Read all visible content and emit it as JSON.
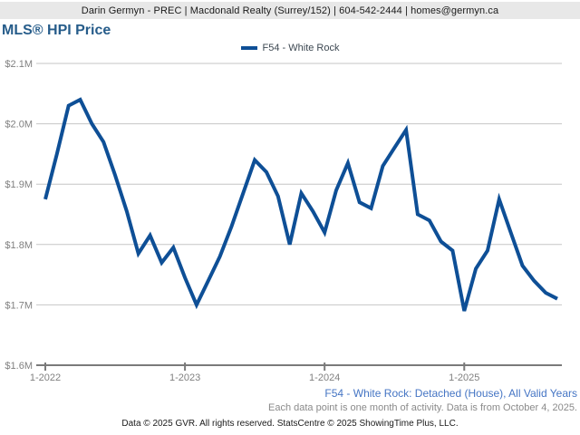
{
  "header": {
    "contact_line": "Darin Germyn - PREC | Macdonald Realty (Surrey/152) | 604-542-2444 | homes@germyn.ca"
  },
  "title": "MLS® HPI Price",
  "legend": {
    "label": "F54 - White Rock",
    "color": "#0e4f96"
  },
  "chart_data": {
    "type": "line",
    "title": "MLS® HPI Price",
    "xlabel": "",
    "ylabel": "",
    "ylim": [
      1.6,
      2.1
    ],
    "grid": true,
    "legend_position": "top-center",
    "y_ticks": [
      {
        "label": "$2.1M",
        "value": 2.1
      },
      {
        "label": "$2.0M",
        "value": 2.0
      },
      {
        "label": "$1.9M",
        "value": 1.9
      },
      {
        "label": "$1.8M",
        "value": 1.8
      },
      {
        "label": "$1.7M",
        "value": 1.7
      },
      {
        "label": "$1.6M",
        "value": 1.6
      }
    ],
    "x_tick_labels": [
      {
        "label": "1-2022",
        "month_index": 0
      },
      {
        "label": "1-2023",
        "month_index": 12
      },
      {
        "label": "1-2024",
        "month_index": 24
      },
      {
        "label": "1-2025",
        "month_index": 36
      }
    ],
    "x": [
      "1-2022",
      "2-2022",
      "3-2022",
      "4-2022",
      "5-2022",
      "6-2022",
      "7-2022",
      "8-2022",
      "9-2022",
      "10-2022",
      "11-2022",
      "12-2022",
      "1-2023",
      "2-2023",
      "3-2023",
      "4-2023",
      "5-2023",
      "6-2023",
      "7-2023",
      "8-2023",
      "9-2023",
      "10-2023",
      "11-2023",
      "12-2023",
      "1-2024",
      "2-2024",
      "3-2024",
      "4-2024",
      "5-2024",
      "6-2024",
      "7-2024",
      "8-2024",
      "9-2024",
      "10-2024",
      "11-2024",
      "12-2024",
      "1-2025",
      "2-2025",
      "3-2025",
      "4-2025",
      "5-2025",
      "6-2025",
      "7-2025",
      "8-2025",
      "9-2025"
    ],
    "series": [
      {
        "name": "F54 - White Rock",
        "color": "#0e4f96",
        "unit": "$M",
        "values": [
          1.875,
          1.95,
          2.03,
          2.04,
          2.0,
          1.97,
          1.915,
          1.855,
          1.785,
          1.815,
          1.77,
          1.795,
          1.745,
          1.7,
          1.74,
          1.78,
          1.83,
          1.885,
          1.94,
          1.92,
          1.88,
          1.8,
          1.885,
          1.855,
          1.82,
          1.89,
          1.935,
          1.87,
          1.86,
          1.93,
          1.96,
          1.99,
          1.85,
          1.84,
          1.805,
          1.79,
          1.69,
          1.76,
          1.79,
          1.875,
          1.82,
          1.765,
          1.74,
          1.72,
          1.71
        ]
      }
    ]
  },
  "footer": {
    "series_caption": "F54 - White Rock: Detached (House), All Valid Years",
    "data_note": "Each data point is one month of activity. Data is from October 4, 2025.",
    "copyright": "Data © 2025 GVR. All rights reserved. StatsCentre © 2025 ShowingTime Plus, LLC."
  },
  "colors": {
    "line": "#0e4f96",
    "gridline": "#c6c6c6",
    "axis": "#7a7a7a",
    "axis_label": "#808080",
    "title": "#265c8a",
    "caption_link_blue": "#4575c4"
  }
}
